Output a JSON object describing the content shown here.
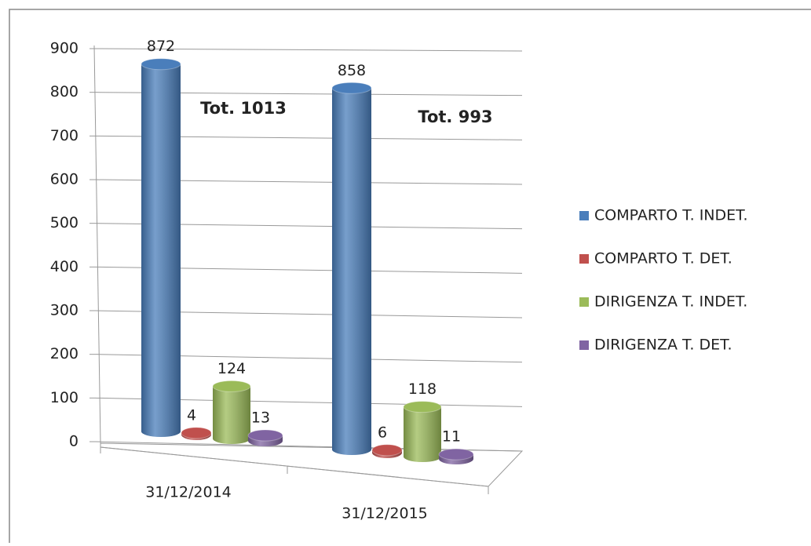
{
  "chart_data": {
    "type": "bar3d",
    "categories": [
      "31/12/2014",
      "31/12/2015"
    ],
    "series": [
      {
        "name": "COMPARTO T. INDET.",
        "color": "#4a7ebb",
        "values": [
          872,
          858
        ]
      },
      {
        "name": "COMPARTO T. DET.",
        "color": "#c0504d",
        "values": [
          4,
          6
        ]
      },
      {
        "name": "DIRIGENZA T. INDET.",
        "color": "#9bbb59",
        "values": [
          124,
          118
        ]
      },
      {
        "name": "DIRIGENZA T. DET.",
        "color": "#8064a2",
        "values": [
          13,
          11
        ]
      }
    ],
    "annotations": [
      "Tot. 1013",
      "Tot. 993"
    ],
    "ylim": [
      0,
      900
    ],
    "yticks": [
      0,
      100,
      200,
      300,
      400,
      500,
      600,
      700,
      800,
      900
    ],
    "grid": true,
    "legend": "right"
  }
}
